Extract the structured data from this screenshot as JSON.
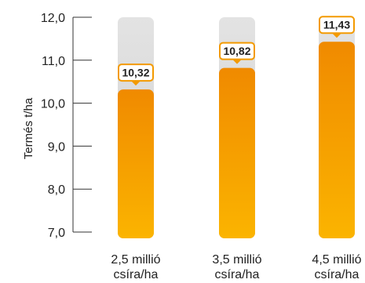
{
  "chart_data": {
    "type": "bar",
    "categories": [
      [
        "2,5 millió",
        "csíra/ha"
      ],
      [
        "3,5 millió",
        "csíra/ha"
      ],
      [
        "4,5 millió",
        "csíra/ha"
      ]
    ],
    "values": [
      10.32,
      10.82,
      11.43
    ],
    "value_labels": [
      "10,32",
      "10,82",
      "11,43"
    ],
    "ylabel": "Termés t/ha",
    "xlabel": "",
    "ylim": [
      7.0,
      12.0
    ],
    "yticks": [
      7.0,
      8.0,
      9.0,
      10.0,
      11.0,
      12.0
    ],
    "ytick_labels": [
      "7,0",
      "8,0",
      "9,0",
      "10,0",
      "11,0",
      "12,0"
    ],
    "grid": false,
    "colors": {
      "bar_top": "#f08a00",
      "bar_bottom": "#fbb400",
      "track": "#d9d9d9",
      "label_border": "#f39a00",
      "axis": "#333333"
    }
  }
}
